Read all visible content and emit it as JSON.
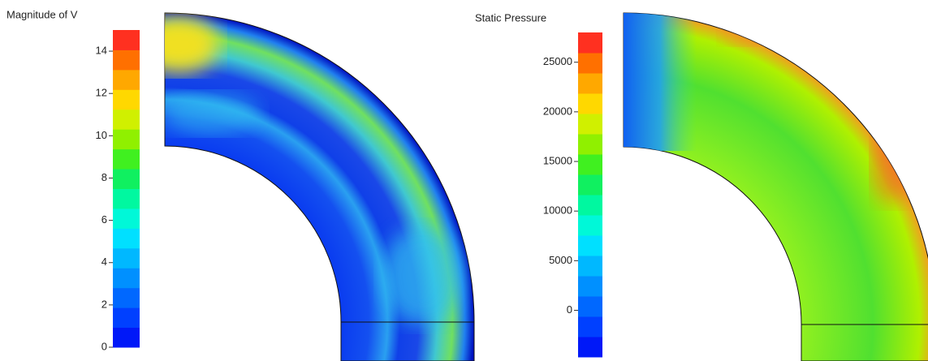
{
  "chart_data": [
    {
      "type": "contour",
      "title": "Magnitude of V",
      "ylim": [
        0,
        15
      ],
      "yticks": [
        0,
        2,
        4,
        6,
        8,
        10,
        12,
        14
      ],
      "colors": [
        "#0018f8",
        "#0040ff",
        "#0068ff",
        "#0090ff",
        "#00b8ff",
        "#00e0ff",
        "#00f8d8",
        "#00f8a0",
        "#10f060",
        "#40f020",
        "#90f000",
        "#d0f000",
        "#ffd800",
        "#ffa800",
        "#ff7000",
        "#ff3020"
      ]
    },
    {
      "type": "contour",
      "title": "Static Pressure",
      "ylim": [
        -4700,
        28000
      ],
      "yticks": [
        0,
        5000,
        10000,
        15000,
        20000,
        25000
      ],
      "colors": [
        "#0018f8",
        "#0040ff",
        "#0068ff",
        "#0090ff",
        "#00b8ff",
        "#00e0ff",
        "#00f8d8",
        "#00f8a0",
        "#10f060",
        "#40f020",
        "#90f000",
        "#d0f000",
        "#ffd800",
        "#ffa800",
        "#ff7000",
        "#ff3020"
      ]
    }
  ]
}
